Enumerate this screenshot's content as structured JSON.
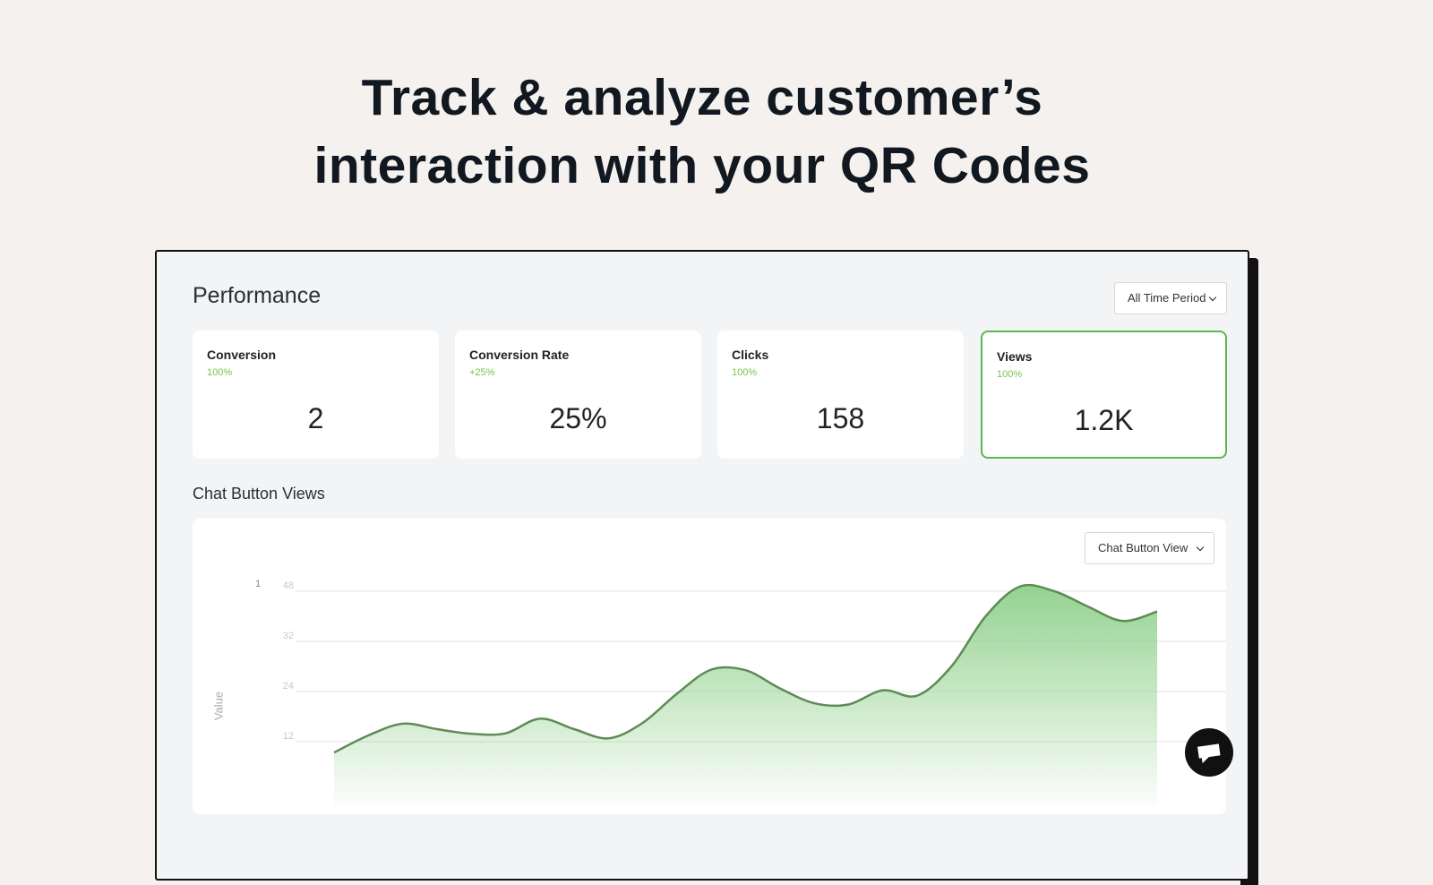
{
  "header": {
    "title_line1": "Track & analyze customer’s",
    "title_line2": "interaction with your QR Codes"
  },
  "performance": {
    "title": "Performance",
    "period_select": "All Time Period"
  },
  "stats": [
    {
      "label": "Conversion",
      "change": "100%",
      "value": "2"
    },
    {
      "label": "Conversion Rate",
      "change": "+25%",
      "value": "25%"
    },
    {
      "label": "Clicks",
      "change": "100%",
      "value": "158"
    },
    {
      "label": "Views",
      "change": "100%",
      "value": "1.2K"
    }
  ],
  "chart_data": {
    "type": "area",
    "title": "Chat Button Views",
    "select": "Chat Button View",
    "y_label": "Value",
    "y_corner_label": "1",
    "yticks": [
      48,
      32,
      24,
      12
    ],
    "grid": true,
    "color": "#5e8c55",
    "fill_color": "#8fd08a",
    "values": [
      9.4,
      13.5,
      16.3,
      15,
      13.9,
      14,
      17.5,
      15,
      12.8,
      16.5,
      23.5,
      27.5,
      27.4,
      24.5,
      21.2,
      20.9,
      24.2,
      23,
      28,
      40,
      49.5,
      48,
      43,
      38.5,
      41.5
    ]
  }
}
